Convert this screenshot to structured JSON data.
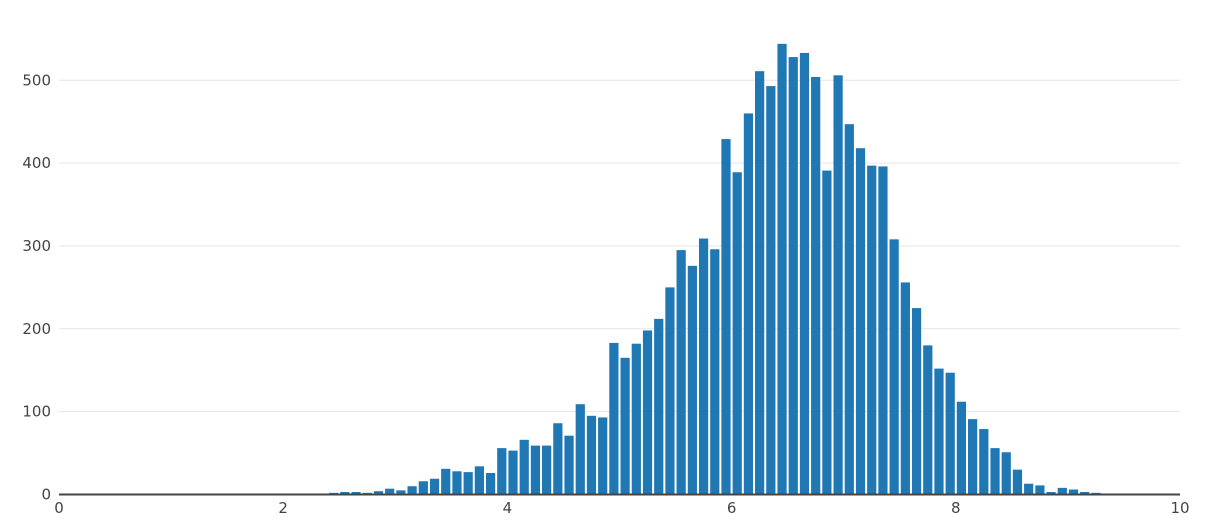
{
  "chart_data": {
    "type": "bar",
    "title": "",
    "xlabel": "",
    "ylabel": "",
    "xlim": [
      0,
      10
    ],
    "ylim": [
      0,
      545
    ],
    "grid": true,
    "bar_color": "#1f77b4",
    "x_ticks": [
      "0",
      "2",
      "4",
      "6",
      "8",
      "10"
    ],
    "y_ticks": [
      "0",
      "100",
      "200",
      "300",
      "400",
      "500"
    ],
    "bin_width": 0.1,
    "x": [
      1.55,
      1.65,
      1.75,
      1.85,
      1.95,
      2.05,
      2.15,
      2.25,
      2.35,
      2.45,
      2.55,
      2.65,
      2.75,
      2.85,
      2.95,
      3.05,
      3.15,
      3.25,
      3.35,
      3.45,
      3.55,
      3.65,
      3.75,
      3.85,
      3.95,
      4.05,
      4.15,
      4.25,
      4.35,
      4.45,
      4.55,
      4.65,
      4.75,
      4.85,
      4.95,
      5.05,
      5.15,
      5.25,
      5.35,
      5.45,
      5.55,
      5.65,
      5.75,
      5.85,
      5.95,
      6.05,
      6.15,
      6.25,
      6.35,
      6.45,
      6.55,
      6.65,
      6.75,
      6.85,
      6.95,
      7.05,
      7.15,
      7.25,
      7.35,
      7.45,
      7.55,
      7.65,
      7.75,
      7.85,
      7.95,
      8.05,
      8.15,
      8.25,
      8.35,
      8.45,
      8.55,
      8.65,
      8.75,
      8.85,
      8.95,
      9.05,
      9.15,
      9.25,
      9.35,
      9.45,
      9.55,
      9.65,
      9.75,
      9.85,
      9.95
    ],
    "values": [
      1,
      0,
      0,
      1,
      1,
      1,
      0,
      1,
      1,
      2,
      3,
      3,
      2,
      4,
      7,
      5,
      10,
      16,
      19,
      31,
      28,
      27,
      34,
      26,
      56,
      53,
      66,
      59,
      59,
      86,
      71,
      109,
      95,
      93,
      183,
      165,
      182,
      198,
      212,
      250,
      295,
      276,
      309,
      296,
      429,
      389,
      460,
      511,
      493,
      544,
      528,
      533,
      504,
      391,
      506,
      447,
      418,
      397,
      396,
      308,
      256,
      225,
      180,
      152,
      147,
      112,
      91,
      79,
      56,
      51,
      30,
      13,
      11,
      3,
      8,
      6,
      3,
      2,
      0,
      1,
      1,
      1,
      0,
      0,
      0
    ]
  }
}
